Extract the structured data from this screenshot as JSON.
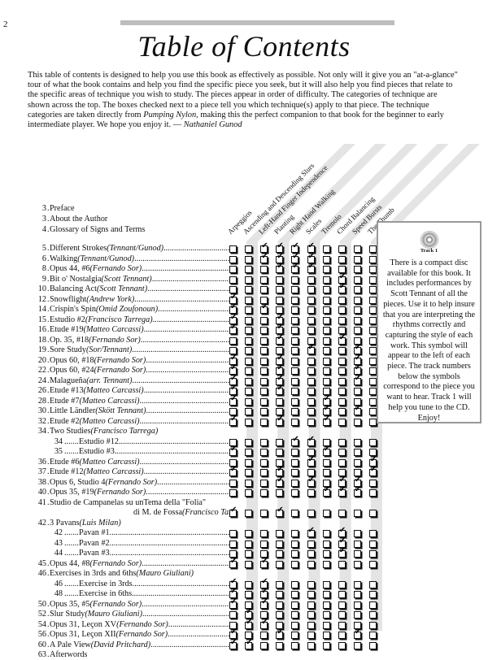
{
  "page_number": "2",
  "title": "Table of Contents",
  "intro": {
    "text_1": "This table of contents is designed to help you use this book as effectively as possible.  Not only will it give you an \"at-a-glance\" tour of what the book contains and help you find the specific piece you seek, but it will also help you find pieces that relate to the specific areas of technique you wish to study.  The pieces appear in order of difficulty.  The categories of technique are shown across the top.  The boxes checked next to a piece tell you which technique(s) apply to that piece.  The technique categories are taken directly from ",
    "book": "Pumping Nylon",
    "text_2": ", making this the perfect companion to that book for the beginner to early intermediate player.  We hope you enjoy it. — ",
    "signature": "Nathaniel Gunod"
  },
  "columns": [
    "Arpeggios",
    "Ascending and Descending Slurs",
    "Left-Hand Finger Independence",
    "Planting",
    "Right Hand Walking",
    "Scales",
    "Tremolo",
    "Chord Balancing",
    "Speed Bursts",
    "The Thumb"
  ],
  "front_matter": [
    {
      "page": "3",
      "title": "Preface"
    },
    {
      "page": "3",
      "title": "About the Author"
    },
    {
      "page": "4",
      "title": "Glossary of Signs and Terms"
    }
  ],
  "entries": [
    {
      "page": "5",
      "title": "Different Strokes ",
      "author": "(Tennant/Gunod)",
      "checks": [
        0,
        0,
        1,
        1,
        1,
        1,
        0,
        0,
        0,
        0
      ]
    },
    {
      "page": "6",
      "title": "Walking ",
      "author": "(Tennant/Gunod)",
      "checks": [
        0,
        0,
        1,
        1,
        1,
        1,
        0,
        0,
        0,
        0
      ]
    },
    {
      "page": "8",
      "title": "Opus 44, #6 ",
      "author": "(Fernando Sor)",
      "checks": [
        0,
        0,
        0,
        1,
        1,
        1,
        0,
        0,
        0,
        0
      ]
    },
    {
      "page": "9",
      "title": "Bit o' Nostalgia ",
      "author": "(Scott Tennant)",
      "checks": [
        0,
        0,
        0,
        0,
        0,
        0,
        0,
        1,
        0,
        0
      ]
    },
    {
      "page": "10",
      "title": "Balancing Act ",
      "author": "(Scott Tennant)",
      "checks": [
        0,
        0,
        0,
        0,
        0,
        0,
        0,
        1,
        0,
        0
      ]
    },
    {
      "page": "12",
      "title": "Snowflight ",
      "author": "(Andrew York)",
      "checks": [
        1,
        0,
        0,
        0,
        0,
        0,
        0,
        0,
        0,
        0
      ]
    },
    {
      "page": "14",
      "title": "Crispin's Spin ",
      "author": "(Omid Zoufonoun)",
      "checks": [
        1,
        0,
        1,
        0,
        0,
        0,
        0,
        0,
        0,
        0
      ]
    },
    {
      "page": "15",
      "title": "Estudio #2 ",
      "author": "(Francisco Tarrega)",
      "checks": [
        1,
        0,
        0,
        1,
        0,
        0,
        0,
        0,
        0,
        0
      ]
    },
    {
      "page": "16",
      "title": "Etude #19 ",
      "author": "(Matteo Carcassi)",
      "checks": [
        1,
        0,
        0,
        1,
        0,
        0,
        0,
        0,
        0,
        0
      ]
    },
    {
      "page": "18",
      "title": "Op. 35, #18 ",
      "author": "(Fernando Sor)",
      "checks": [
        0,
        0,
        0,
        1,
        0,
        0,
        0,
        1,
        0,
        0
      ]
    },
    {
      "page": "19",
      "title": "Sore Study ",
      "author": "(Sor/Tennant)",
      "checks": [
        0,
        0,
        0,
        0,
        0,
        1,
        0,
        0,
        1,
        0
      ]
    },
    {
      "page": "20",
      "title": "Opus 60, #18 ",
      "author": "(Fernando Sor)",
      "checks": [
        1,
        0,
        0,
        1,
        0,
        0,
        0,
        0,
        1,
        0
      ]
    },
    {
      "page": "22",
      "title": "Opus 60, #24 ",
      "author": "(Fernando Sor)",
      "checks": [
        1,
        0,
        0,
        1,
        0,
        0,
        0,
        0,
        1,
        0
      ]
    },
    {
      "page": "24",
      "title": "Malagueña ",
      "author": "(arr. Tennant)",
      "checks": [
        1,
        0,
        0,
        1,
        0,
        0,
        0,
        0,
        1,
        0
      ]
    },
    {
      "page": "26",
      "title": "Etude #13 ",
      "author": "(Matteo Carcassi)",
      "checks": [
        1,
        0,
        0,
        1,
        0,
        0,
        0,
        0,
        0,
        0
      ]
    },
    {
      "page": "28",
      "title": "Etude #7 ",
      "author": "(Matteo Carcassi)",
      "checks": [
        1,
        0,
        0,
        0,
        0,
        0,
        1,
        0,
        0,
        0
      ]
    },
    {
      "page": "30",
      "title": "Little Ländler ",
      "author": "(Skött Tennant)",
      "checks": [
        0,
        0,
        0,
        0,
        0,
        0,
        1,
        0,
        1,
        0
      ]
    },
    {
      "page": "32",
      "title": "Etude #2 ",
      "author": "(Matteo Carcassi)",
      "checks": [
        1,
        0,
        0,
        1,
        0,
        0,
        1,
        0,
        0,
        0
      ]
    },
    {
      "page": "34",
      "title": "Two Studies ",
      "author": "(Francisco Tarrega)",
      "group": true
    },
    {
      "page": "34",
      "title": "Estudio #12",
      "sub": true,
      "checks": [
        0,
        0,
        0,
        0,
        1,
        1,
        0,
        0,
        0,
        0
      ]
    },
    {
      "page": "35",
      "title": "Estudio #3",
      "sub": true,
      "checks": [
        1,
        0,
        0,
        0,
        0,
        0,
        1,
        0,
        0,
        0
      ]
    },
    {
      "page": "36",
      "title": "Etude #6 ",
      "author": "(Matteo Carcassi)",
      "checks": [
        0,
        0,
        0,
        0,
        0,
        1,
        0,
        0,
        0,
        1
      ]
    },
    {
      "page": "37",
      "title": "Etude #12 ",
      "author": "(Matteo Carcassi)",
      "checks": [
        1,
        0,
        0,
        1,
        0,
        0,
        0,
        0,
        0,
        1
      ]
    },
    {
      "page": "38",
      "title": "Opus 6, Studio 4 ",
      "author": "(Fernando Sor)",
      "checks": [
        0,
        0,
        0,
        1,
        0,
        1,
        0,
        1,
        1,
        0
      ]
    },
    {
      "page": "40",
      "title": "Opus 35, #19 ",
      "author": "(Fernando Sor)",
      "checks": [
        0,
        0,
        0,
        0,
        0,
        0,
        1,
        1,
        1,
        0
      ]
    },
    {
      "page": "41",
      "title": "Studio de Campanelas su unTema della \"Folia\"",
      "group": true
    },
    {
      "page": "",
      "title": "di M. de Fossa ",
      "author": "(Francisco Tarrega)",
      "cont": true,
      "checks": [
        1,
        0,
        0,
        1,
        0,
        0,
        0,
        0,
        0,
        0
      ]
    },
    {
      "page": "42",
      "title": "3 Pavans ",
      "author": "(Luis Milan)",
      "group": true
    },
    {
      "page": "42",
      "title": "Pavan #1",
      "sub": true,
      "checks": [
        0,
        0,
        0,
        0,
        0,
        1,
        0,
        1,
        0,
        0
      ]
    },
    {
      "page": "43",
      "title": "Pavan #2",
      "sub": true,
      "checks": [
        0,
        0,
        0,
        0,
        0,
        0,
        0,
        1,
        0,
        0
      ]
    },
    {
      "page": "44",
      "title": "Pavan #3",
      "sub": true,
      "checks": [
        0,
        0,
        0,
        0,
        0,
        0,
        0,
        1,
        0,
        0
      ]
    },
    {
      "page": "45",
      "title": "Opus 44, #8 ",
      "author": "(Fernando Sor)",
      "checks": [
        1,
        0,
        1,
        0,
        0,
        0,
        0,
        0,
        0,
        0
      ]
    },
    {
      "page": "46",
      "title": "Exercises in 3rds and 6ths ",
      "author": "(Mauro Giuliani)",
      "group": true
    },
    {
      "page": "46",
      "title": "Exercise in 3rds",
      "sub": true,
      "checks": [
        1,
        0,
        1,
        0,
        0,
        0,
        0,
        0,
        0,
        0
      ]
    },
    {
      "page": "48",
      "title": "Exercise in 6ths",
      "sub": true,
      "checks": [
        1,
        0,
        1,
        0,
        0,
        0,
        0,
        0,
        0,
        0
      ]
    },
    {
      "page": "50",
      "title": "Opus 35, #5 ",
      "author": "(Fernando Sor)",
      "checks": [
        1,
        0,
        1,
        0,
        0,
        0,
        0,
        0,
        0,
        0
      ]
    },
    {
      "page": "52",
      "title": "Slur Study ",
      "author": "(Mauro Giuliani)",
      "checks": [
        0,
        1,
        0,
        0,
        0,
        0,
        0,
        0,
        0,
        0
      ]
    },
    {
      "page": "54",
      "title": "Opus 31, Leçon XV ",
      "author": "(Fernando Sor)",
      "checks": [
        0,
        1,
        1,
        0,
        0,
        0,
        0,
        0,
        0,
        0
      ]
    },
    {
      "page": "56",
      "title": "Opus 31, Leçon XII ",
      "author": "(Fernando Sor)",
      "checks": [
        1,
        0,
        0,
        1,
        0,
        0,
        0,
        0,
        1,
        0
      ]
    },
    {
      "page": "60",
      "title": "A Pale View ",
      "author": "(David Pritchard)",
      "checks": [
        1,
        1,
        0,
        0,
        0,
        0,
        0,
        0,
        0,
        0
      ]
    },
    {
      "page": "63",
      "title": "Afterwords",
      "group": true
    }
  ],
  "sidebar": {
    "disc_label": "Track 1",
    "text": "There is a compact disc available for this book. It includes performances by Scott Tennant of all the pieces.  Use it to help insure that you are interpreting the rhythms correctly and capturing the style of each work. This symbol will appear to the left of each piece. The track numbers below the symbols correspond to the piece you want to hear. Track 1 will help you tune to the CD. Enjoy!"
  },
  "colors": {
    "stripe": "#e4e4e4",
    "rule": "#bdbdbd",
    "box_border": "#999999"
  }
}
